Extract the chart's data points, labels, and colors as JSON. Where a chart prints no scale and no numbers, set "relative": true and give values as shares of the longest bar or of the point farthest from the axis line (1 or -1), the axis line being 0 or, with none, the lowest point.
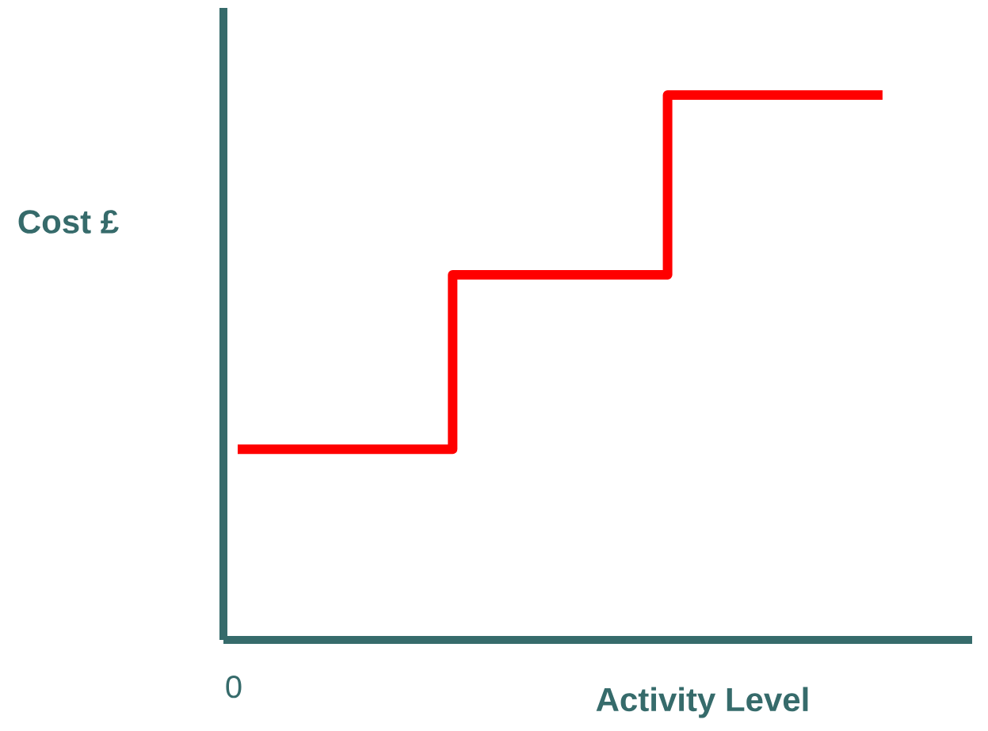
{
  "chart_data": {
    "type": "step",
    "xlabel": "Activity Level",
    "ylabel": "Cost £",
    "categories": [
      null,
      null,
      null,
      null
    ],
    "values": [
      0.35,
      0.67,
      1,
      1
    ],
    "color": "#ff0000",
    "relative": true,
    "annotations": [
      "0"
    ]
  }
}
